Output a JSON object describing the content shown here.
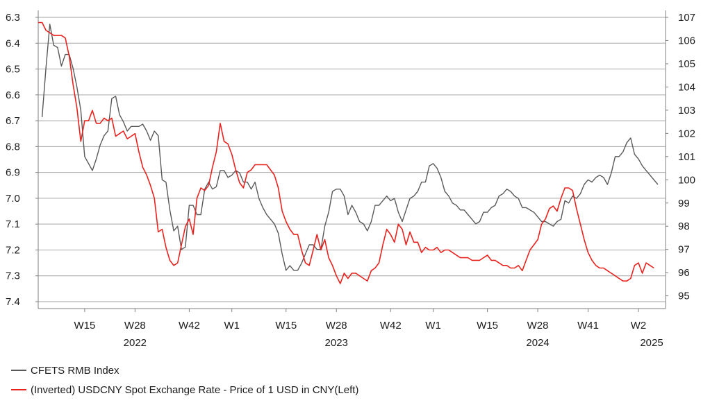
{
  "chart_data": {
    "type": "line",
    "left_axis": {
      "ticks": [
        "6.3",
        "6.4",
        "6.5",
        "6.6",
        "6.7",
        "6.8",
        "6.9",
        "7.0",
        "7.1",
        "7.2",
        "7.3",
        "7.4"
      ],
      "min": 6.3,
      "max": 7.4,
      "inverted": true
    },
    "right_axis": {
      "ticks": [
        "107",
        "106",
        "105",
        "104",
        "103",
        "102",
        "101",
        "100",
        "99",
        "98",
        "97",
        "96",
        "95"
      ],
      "min": 94.75,
      "max": 107,
      "inverted": false
    },
    "x_ticks": [
      "W15",
      "W28",
      "W42",
      "W1",
      "W15",
      "W28",
      "W42",
      "W1",
      "W15",
      "W28",
      "W41",
      "W2"
    ],
    "x_tick_weeks": [
      12,
      25,
      39,
      50,
      64,
      77,
      91,
      102,
      116,
      129,
      142,
      155
    ],
    "year_labels": [
      "2022",
      "2023",
      "2024",
      "2025"
    ],
    "year_label_weeks": [
      25,
      77,
      129,
      159
    ],
    "x_range_weeks": [
      0,
      162
    ],
    "grid": true,
    "legend_position": "bottom-left",
    "series": [
      {
        "name": "CFETS RMB Index",
        "color": "#595959",
        "axis": "right",
        "start_week": 1,
        "values": [
          102.7,
          104.8,
          106.7,
          105.8,
          105.7,
          104.9,
          105.4,
          105.4,
          104.8,
          104.0,
          103.0,
          101.0,
          100.7,
          100.4,
          100.9,
          101.5,
          101.9,
          102.1,
          103.5,
          103.6,
          102.8,
          102.5,
          102.1,
          102.3,
          102.3,
          102.3,
          102.4,
          102.1,
          101.7,
          102.1,
          101.9,
          100.0,
          99.9,
          98.7,
          97.8,
          98.0,
          97.0,
          97.1,
          98.9,
          98.9,
          98.5,
          98.5,
          99.6,
          99.9,
          99.6,
          99.7,
          100.4,
          100.4,
          100.1,
          100.2,
          100.4,
          100.3,
          99.9,
          99.9,
          99.6,
          99.9,
          99.2,
          98.8,
          98.5,
          98.3,
          98.1,
          97.7,
          96.8,
          96.1,
          96.3,
          96.1,
          96.1,
          96.4,
          96.8,
          97.2,
          97.2,
          97.0,
          97.0,
          98.0,
          98.6,
          99.5,
          99.6,
          99.6,
          99.3,
          98.5,
          98.9,
          98.6,
          98.2,
          98.1,
          97.8,
          98.2,
          98.9,
          98.9,
          99.1,
          99.3,
          99.1,
          99.2,
          98.6,
          98.2,
          98.7,
          99.2,
          99.3,
          99.5,
          99.9,
          99.9,
          100.6,
          100.7,
          100.5,
          100.1,
          99.5,
          99.3,
          99.0,
          98.9,
          98.7,
          98.7,
          98.5,
          98.3,
          98.1,
          98.2,
          98.6,
          98.6,
          98.8,
          98.9,
          99.3,
          99.4,
          99.6,
          99.5,
          99.3,
          99.2,
          98.8,
          98.8,
          98.7,
          98.6,
          98.4,
          98.2,
          98.2,
          98.1,
          98.0,
          98.2,
          98.3,
          99.1,
          99.0,
          99.3,
          99.2,
          99.4,
          99.8,
          100.0,
          99.9,
          100.1,
          100.2,
          100.1,
          99.8,
          100.3,
          101.0,
          101.0,
          101.2,
          101.6,
          101.8,
          101.1,
          100.9,
          100.6,
          100.4,
          100.2,
          100.0,
          99.8
        ]
      },
      {
        "name": "(Inverted) USDCNY Spot Exchange Rate - Price of 1 USD in CNY(Left)",
        "color": "#e8231f",
        "axis": "left",
        "start_week": 0,
        "values": [
          6.32,
          6.32,
          6.35,
          6.36,
          6.37,
          6.37,
          6.37,
          6.38,
          6.45,
          6.56,
          6.65,
          6.78,
          6.7,
          6.7,
          6.66,
          6.71,
          6.71,
          6.69,
          6.7,
          6.69,
          6.76,
          6.75,
          6.74,
          6.77,
          6.76,
          6.75,
          6.82,
          6.88,
          6.91,
          6.95,
          7.0,
          7.13,
          7.12,
          7.19,
          7.24,
          7.26,
          7.25,
          7.18,
          7.11,
          7.08,
          7.14,
          7.0,
          6.96,
          6.97,
          6.95,
          6.88,
          6.82,
          6.71,
          6.78,
          6.79,
          6.83,
          6.89,
          6.94,
          6.96,
          6.9,
          6.89,
          6.87,
          6.87,
          6.87,
          6.87,
          6.89,
          6.91,
          6.96,
          7.05,
          7.09,
          7.12,
          7.14,
          7.14,
          7.2,
          7.25,
          7.26,
          7.2,
          7.14,
          7.2,
          7.16,
          7.23,
          7.26,
          7.3,
          7.33,
          7.29,
          7.31,
          7.29,
          7.29,
          7.3,
          7.31,
          7.32,
          7.28,
          7.27,
          7.25,
          7.18,
          7.12,
          7.14,
          7.17,
          7.1,
          7.12,
          7.18,
          7.13,
          7.17,
          7.17,
          7.21,
          7.19,
          7.2,
          7.2,
          7.19,
          7.21,
          7.2,
          7.2,
          7.21,
          7.22,
          7.23,
          7.23,
          7.23,
          7.24,
          7.24,
          7.24,
          7.23,
          7.22,
          7.24,
          7.24,
          7.25,
          7.26,
          7.26,
          7.27,
          7.27,
          7.26,
          7.28,
          7.24,
          7.2,
          7.18,
          7.16,
          7.1,
          7.08,
          7.04,
          7.03,
          7.05,
          7.0,
          6.96,
          6.96,
          6.97,
          7.04,
          7.1,
          7.16,
          7.21,
          7.24,
          7.26,
          7.27,
          7.27,
          7.28,
          7.29,
          7.3,
          7.31,
          7.32,
          7.32,
          7.31,
          7.26,
          7.25,
          7.29,
          7.25,
          7.26,
          7.27
        ]
      }
    ]
  }
}
